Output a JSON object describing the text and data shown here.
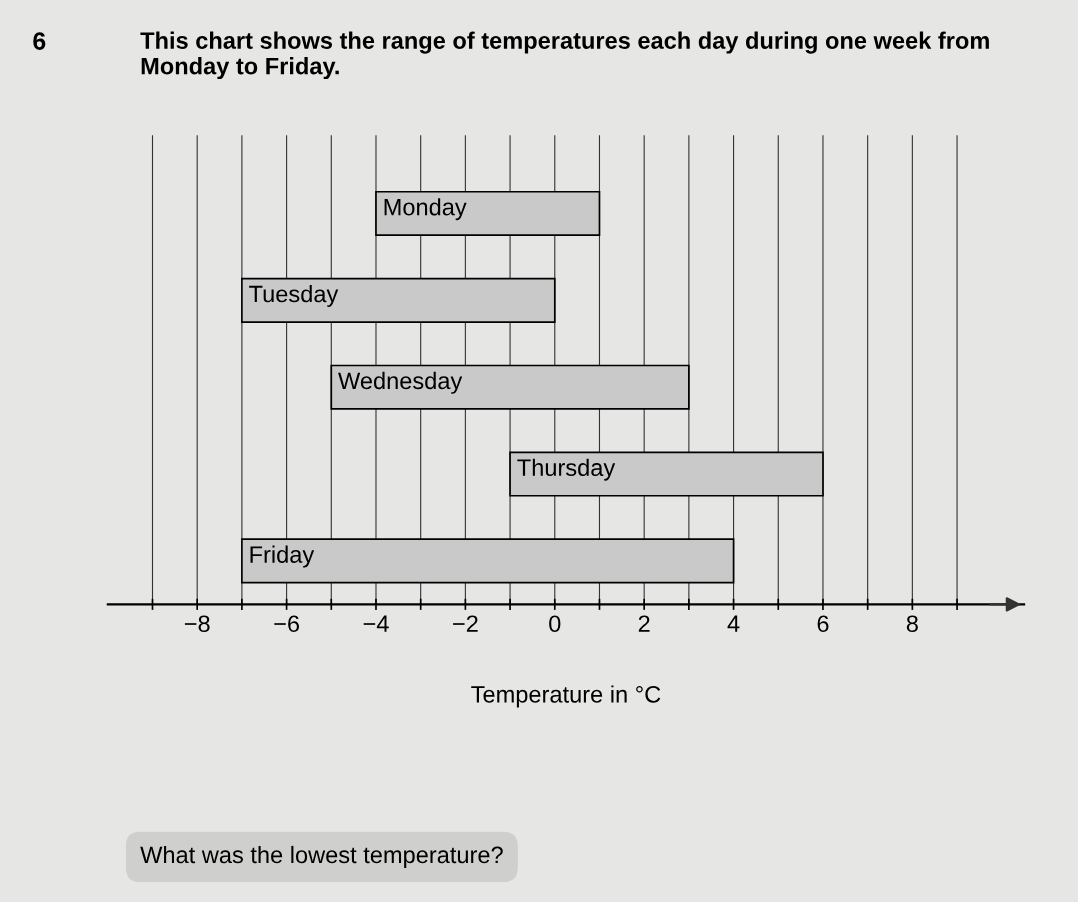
{
  "chart_data": {
    "type": "bar",
    "orientation": "horizontal",
    "title": "This chart shows the range of temperatures each day during one week from Monday to Friday.",
    "xlabel": "Temperature in °C",
    "categories": [
      "Monday",
      "Tuesday",
      "Wednesday",
      "Thursday",
      "Friday"
    ],
    "base": [
      -4,
      -7,
      -5,
      -1,
      -7
    ],
    "values": [
      5,
      7,
      8,
      7,
      11
    ],
    "color": "#c9c9c9",
    "xlim": [
      -10,
      10.5
    ],
    "xticks": [
      {
        "value": -9,
        "label": null
      },
      -8,
      {
        "value": -7,
        "label": null
      },
      -6,
      {
        "value": -5,
        "label": null
      },
      -4,
      {
        "value": -3,
        "label": null
      },
      -2,
      {
        "value": -1,
        "label": null
      },
      0,
      {
        "value": 1,
        "label": null
      },
      2,
      {
        "value": 3,
        "label": null
      },
      4,
      {
        "value": 5,
        "label": null
      },
      6,
      {
        "value": 7,
        "label": null
      },
      8,
      {
        "value": 9,
        "label": null
      }
    ],
    "grid": "x",
    "legend": false,
    "tick_labels": "x",
    "annotations": [
      "6",
      "What was the lowest temperature?"
    ]
  }
}
